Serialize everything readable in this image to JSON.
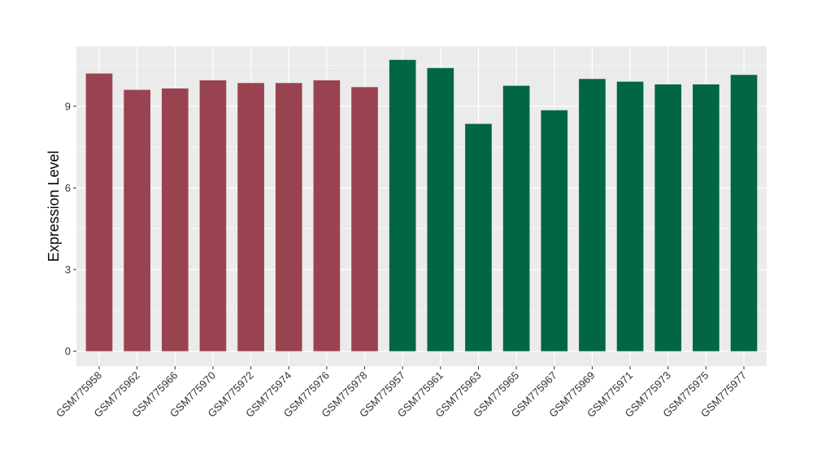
{
  "chart_data": {
    "type": "bar",
    "title": "",
    "xlabel": "",
    "ylabel": "Expression Level",
    "ylim": [
      -0.55,
      11.2
    ],
    "yticks": [
      0,
      3,
      6,
      9
    ],
    "grid": true,
    "legend": "none",
    "colors": {
      "group1": "#9a4350",
      "group2": "#006645",
      "panel_bg": "#ebebeb",
      "grid": "#ffffff"
    },
    "categories": [
      "GSM775958",
      "GSM775962",
      "GSM775966",
      "GSM775970",
      "GSM775972",
      "GSM775974",
      "GSM775976",
      "GSM775978",
      "GSM775957",
      "GSM775961",
      "GSM775963",
      "GSM775965",
      "GSM775967",
      "GSM775969",
      "GSM775971",
      "GSM775973",
      "GSM775975",
      "GSM775977"
    ],
    "values": [
      10.2,
      9.6,
      9.65,
      9.95,
      9.85,
      9.85,
      9.95,
      9.7,
      10.7,
      10.4,
      8.35,
      9.75,
      8.85,
      10.0,
      9.9,
      9.8,
      9.8,
      10.15
    ],
    "group": [
      1,
      1,
      1,
      1,
      1,
      1,
      1,
      1,
      2,
      2,
      2,
      2,
      2,
      2,
      2,
      2,
      2,
      2
    ]
  }
}
